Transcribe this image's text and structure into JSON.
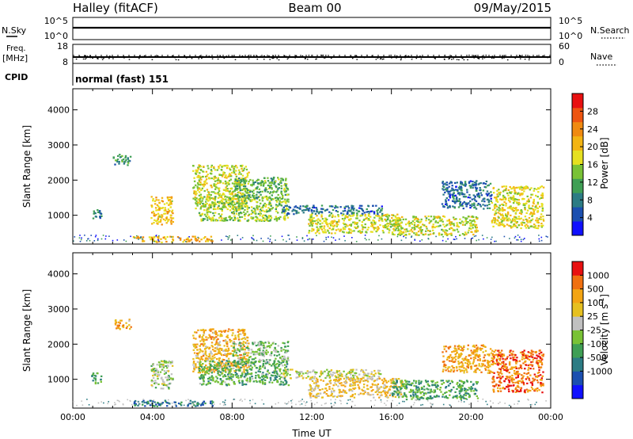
{
  "header": {
    "station": "Halley (fitACF)",
    "beam": "Beam 00",
    "date": "09/May/2015"
  },
  "panels": {
    "nsky": {
      "label": "N.Sky",
      "ticks": [
        "10^5",
        "10^0"
      ],
      "right_label": "N.Search",
      "right_ticks": [
        "10^5",
        "10^0"
      ]
    },
    "freq": {
      "label_line1": "Freq.",
      "label_line2": "[MHz]",
      "ticks": [
        "18",
        "8"
      ],
      "right_label": "Nave",
      "right_ticks": [
        "60",
        "0"
      ]
    },
    "cpid": {
      "label": "CPID",
      "text": "normal (fast) 151"
    }
  },
  "chart_data": [
    {
      "type": "heatmap",
      "name": "Power",
      "xlabel": "",
      "ylabel": "Slant Range [km]",
      "xlim": [
        0,
        24
      ],
      "ylim": [
        180,
        4600
      ],
      "yticks": [
        1000,
        2000,
        3000,
        4000
      ],
      "colorbar": {
        "label": "Power [dB]",
        "range": [
          0,
          32
        ],
        "ticks": [
          "4",
          "8",
          "12",
          "16",
          "20",
          "24",
          "28"
        ],
        "colors": [
          "#1010ff",
          "#1b4fb0",
          "#2c7c84",
          "#3f9f55",
          "#79c236",
          "#e6e020",
          "#f3b413",
          "#f08a10",
          "#ee5510",
          "#e81010"
        ]
      },
      "regions": [
        {
          "t0": 0.9,
          "t1": 1.4,
          "r0": 900,
          "r1": 1200,
          "v": 8
        },
        {
          "t0": 2.0,
          "t1": 2.9,
          "r0": 2450,
          "r1": 2750,
          "v": 9
        },
        {
          "t0": 3.0,
          "t1": 7.0,
          "r0": 250,
          "r1": 420,
          "v": 22
        },
        {
          "t0": 3.9,
          "t1": 5.0,
          "r0": 750,
          "r1": 1550,
          "v": 20
        },
        {
          "t0": 6.0,
          "t1": 8.8,
          "r0": 1200,
          "r1": 2450,
          "v": 17
        },
        {
          "t0": 6.3,
          "t1": 10.8,
          "r0": 850,
          "r1": 1550,
          "v": 15
        },
        {
          "t0": 8.0,
          "t1": 10.8,
          "r0": 1500,
          "r1": 2100,
          "v": 12
        },
        {
          "t0": 10.5,
          "t1": 15.5,
          "r0": 1050,
          "r1": 1300,
          "v": 6
        },
        {
          "t0": 11.8,
          "t1": 16.5,
          "r0": 500,
          "r1": 1050,
          "v": 17
        },
        {
          "t0": 16.0,
          "t1": 20.3,
          "r0": 450,
          "r1": 1000,
          "v": 17
        },
        {
          "t0": 18.5,
          "t1": 21.0,
          "r0": 1200,
          "r1": 2000,
          "v": 6
        },
        {
          "t0": 21.0,
          "t1": 23.6,
          "r0": 650,
          "r1": 1850,
          "v": 18
        }
      ]
    },
    {
      "type": "heatmap",
      "name": "Velocity",
      "xlabel": "Time UT",
      "ylabel": "Slant Range [km]",
      "xlim": [
        0,
        24
      ],
      "ylim": [
        180,
        4600
      ],
      "yticks": [
        1000,
        2000,
        3000,
        4000
      ],
      "xticks": [
        "00:00",
        "04:00",
        "08:00",
        "12:00",
        "16:00",
        "20:00",
        "00:00"
      ],
      "colorbar": {
        "label": "Velocity [m s^-1]",
        "range": [
          -1000,
          1000
        ],
        "ticks": [
          "1000",
          "500",
          "100",
          "25",
          "-25",
          "-100",
          "-500",
          "-1000"
        ],
        "colors": [
          "#1010ff",
          "#1b4fb0",
          "#2c7c84",
          "#3f9f55",
          "#79c236",
          "#c0c0c0",
          "#e6c020",
          "#f3a413",
          "#f07010",
          "#e81010"
        ]
      },
      "regions": [
        {
          "t0": 0.9,
          "t1": 1.4,
          "r0": 900,
          "r1": 1200,
          "v": 0.35
        },
        {
          "t0": 2.0,
          "t1": 2.9,
          "r0": 2450,
          "r1": 2750,
          "v": 0.75
        },
        {
          "t0": 3.0,
          "t1": 7.0,
          "r0": 250,
          "r1": 420,
          "v": 0.2
        },
        {
          "t0": 3.9,
          "t1": 5.0,
          "r0": 750,
          "r1": 1550,
          "v": 0.5
        },
        {
          "t0": 6.0,
          "t1": 8.8,
          "r0": 1200,
          "r1": 2450,
          "v": 0.72
        },
        {
          "t0": 6.3,
          "t1": 10.8,
          "r0": 850,
          "r1": 1550,
          "v": 0.38
        },
        {
          "t0": 8.0,
          "t1": 10.8,
          "r0": 1500,
          "r1": 2100,
          "v": 0.45
        },
        {
          "t0": 10.5,
          "t1": 15.5,
          "r0": 1050,
          "r1": 1300,
          "v": 0.55
        },
        {
          "t0": 11.8,
          "t1": 16.5,
          "r0": 500,
          "r1": 1050,
          "v": 0.68
        },
        {
          "t0": 16.0,
          "t1": 20.3,
          "r0": 450,
          "r1": 1000,
          "v": 0.35
        },
        {
          "t0": 18.5,
          "t1": 21.0,
          "r0": 1200,
          "r1": 2000,
          "v": 0.78
        },
        {
          "t0": 21.0,
          "t1": 23.6,
          "r0": 650,
          "r1": 1850,
          "v": 0.88
        }
      ]
    }
  ]
}
